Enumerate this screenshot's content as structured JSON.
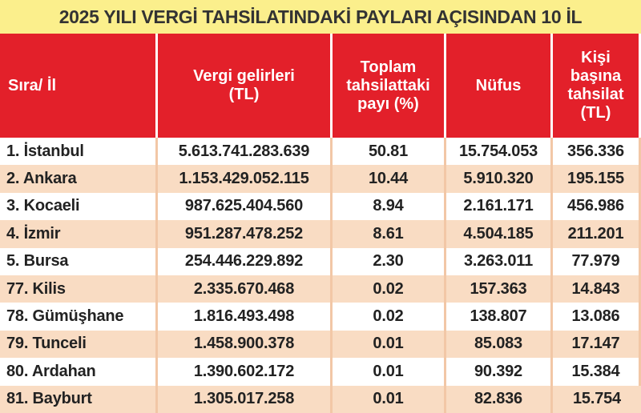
{
  "title": "2025 YILI VERGİ TAHSİLATINDAKİ PAYLARI AÇISINDAN 10 İL",
  "table": {
    "headers": [
      [
        "Sıra/ İl"
      ],
      [
        "Vergi gelirleri",
        "(TL)"
      ],
      [
        "Toplam",
        "tahsilattaki",
        "payı (%)"
      ],
      [
        "Nüfus"
      ],
      [
        "Kişi",
        "başına",
        "tahsilat",
        "(TL)"
      ]
    ],
    "rows": [
      [
        "1. İstanbul",
        "5.613.741.283.639",
        "50.81",
        "15.754.053",
        "356.336"
      ],
      [
        "2. Ankara",
        "1.153.429.052.115",
        "10.44",
        "5.910.320",
        "195.155"
      ],
      [
        "3. Kocaeli",
        "987.625.404.560",
        "8.94",
        "2.161.171",
        "456.986"
      ],
      [
        "4. İzmir",
        "951.287.478.252",
        "8.61",
        "4.504.185",
        "211.201"
      ],
      [
        "5. Bursa",
        "254.446.229.892",
        "2.30",
        "3.263.011",
        "77.979"
      ],
      [
        "77. Kilis",
        "2.335.670.468",
        "0.02",
        "157.363",
        "14.843"
      ],
      [
        "78. Gümüşhane",
        "1.816.493.498",
        "0.02",
        "138.807",
        "13.086"
      ],
      [
        "79. Tunceli",
        "1.458.900.378",
        "0.01",
        "85.083",
        "17.147"
      ],
      [
        "80. Ardahan",
        "1.390.602.172",
        "0.01",
        "90.392",
        "15.384"
      ],
      [
        "81. Bayburt",
        "1.305.017.258",
        "0.01",
        "82.836",
        "15.754"
      ]
    ]
  }
}
